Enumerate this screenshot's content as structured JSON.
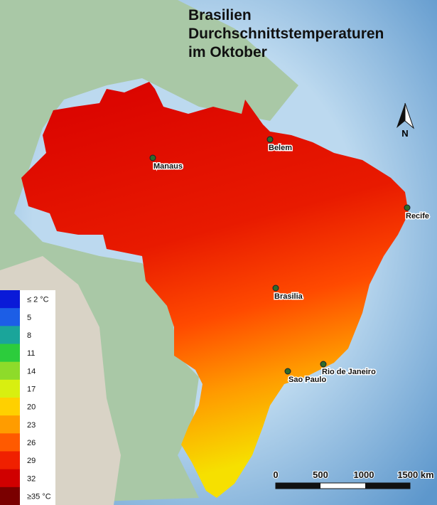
{
  "title": [
    "Brasilien",
    "Durchschnittstemperaturen",
    "im Oktober"
  ],
  "cities": [
    "Manaus",
    "Belem",
    "Recife",
    "Brasilia",
    "Rio de Janeiro",
    "Sao Paulo"
  ],
  "legend": {
    "labels": [
      "≤ 2 °C",
      "5",
      "8",
      "11",
      "14",
      "17",
      "20",
      "23",
      "26",
      "29",
      "32",
      "≥35 °C"
    ],
    "colors": [
      "#0a1ad8",
      "#1c5ee6",
      "#1aa59a",
      "#2ccc3c",
      "#8edb2a",
      "#d8ef10",
      "#ffd000",
      "#ff9c00",
      "#ff5a00",
      "#f02000",
      "#d00000",
      "#7a0000"
    ]
  },
  "scale": [
    "0",
    "500",
    "1000",
    "1500 km"
  ],
  "north": "N"
}
